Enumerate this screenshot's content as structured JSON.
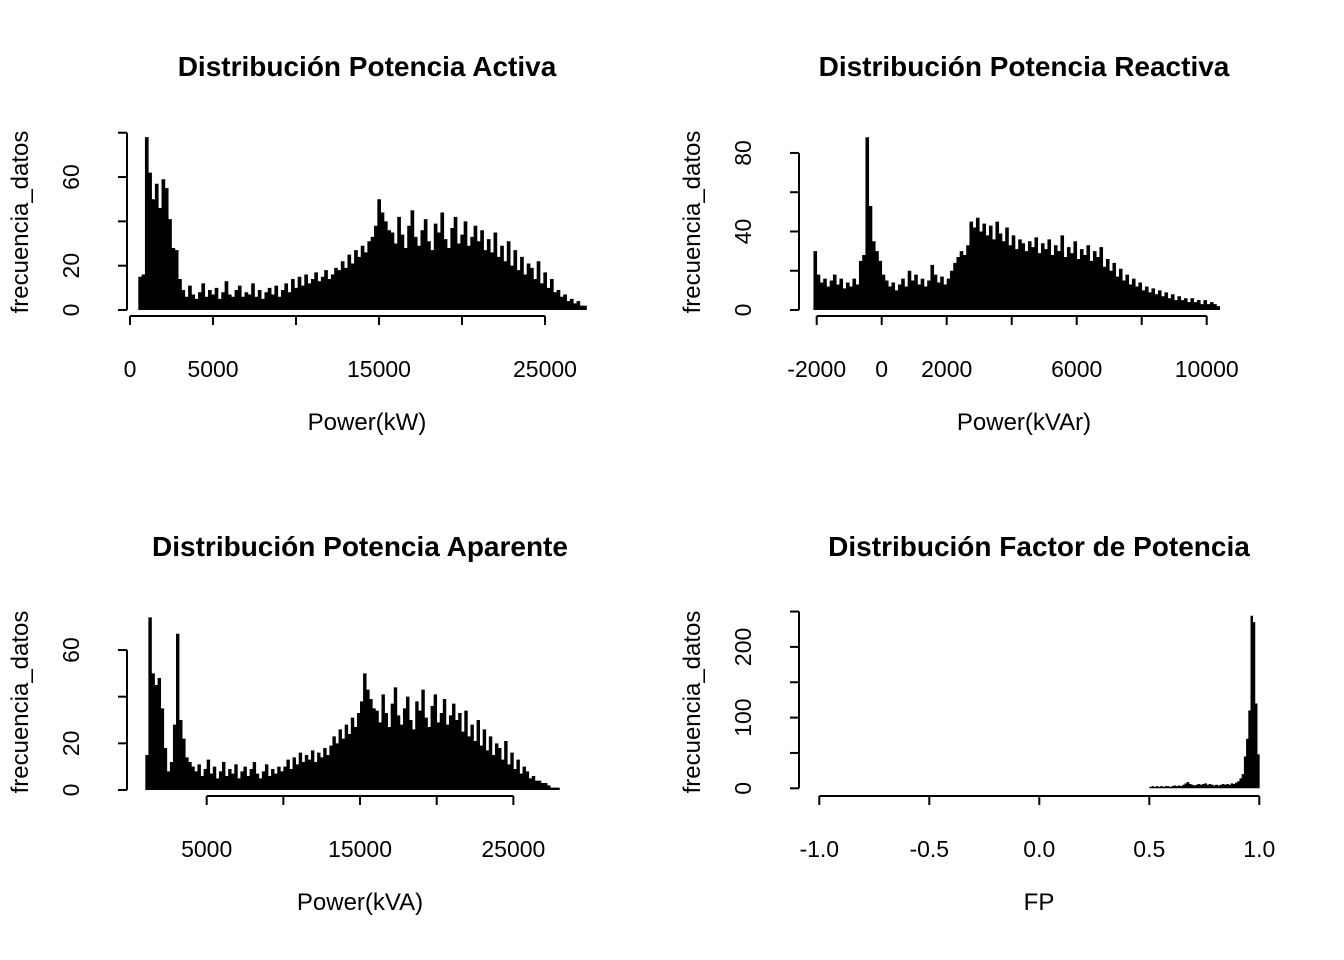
{
  "figure": {
    "background": "#ffffff",
    "grid": "2x2",
    "foreground": "#000000"
  },
  "chart_data": [
    {
      "type": "bar",
      "subtype": "histogram",
      "title": "Distribución Potencia Activa",
      "xlabel": "Power(kW)",
      "ylabel": "frecuencia_datos",
      "bar_color": "#000000",
      "x_start": 500,
      "bin_width": 200,
      "counts": [
        15,
        16,
        78,
        62,
        50,
        57,
        46,
        59,
        55,
        41,
        28,
        27,
        14,
        9,
        6,
        11,
        7,
        5,
        8,
        12,
        6,
        9,
        7,
        10,
        5,
        8,
        13,
        7,
        6,
        9,
        11,
        6,
        8,
        7,
        12,
        6,
        9,
        5,
        8,
        10,
        7,
        11,
        6,
        9,
        12,
        8,
        14,
        10,
        15,
        11,
        16,
        12,
        14,
        17,
        13,
        15,
        18,
        14,
        16,
        19,
        18,
        22,
        19,
        25,
        21,
        27,
        24,
        29,
        26,
        31,
        33,
        38,
        50,
        44,
        40,
        36,
        35,
        30,
        42,
        34,
        28,
        38,
        45,
        33,
        29,
        36,
        41,
        31,
        27,
        39,
        35,
        44,
        32,
        28,
        37,
        42,
        30,
        34,
        40,
        29,
        33,
        38,
        31,
        36,
        27,
        32,
        26,
        35,
        24,
        29,
        22,
        31,
        20,
        27,
        18,
        24,
        16,
        21,
        19,
        14,
        22,
        12,
        17,
        10,
        14,
        8,
        9,
        6,
        7,
        4,
        5,
        3,
        4,
        2,
        2
      ],
      "x_ticks": {
        "values": [
          0,
          5000,
          10000,
          15000,
          20000,
          25000
        ],
        "labels": [
          "0",
          "5000",
          null,
          "15000",
          null,
          "25000"
        ]
      },
      "y_ticks": {
        "values": [
          0,
          20,
          40,
          60,
          80
        ],
        "labels": [
          "0",
          "20",
          null,
          "60",
          null
        ]
      },
      "x_range": [
        0,
        25000
      ],
      "y_range": [
        0,
        80
      ]
    },
    {
      "type": "bar",
      "subtype": "histogram",
      "title": "Distribución Potencia Reactiva",
      "xlabel": "Power(kVAr)",
      "ylabel": "frecuencia_datos",
      "bar_color": "#000000",
      "x_start": -2100,
      "bin_width": 100,
      "counts": [
        30,
        18,
        14,
        16,
        12,
        15,
        18,
        13,
        16,
        11,
        14,
        12,
        16,
        13,
        25,
        28,
        88,
        53,
        35,
        30,
        25,
        18,
        15,
        12,
        14,
        10,
        13,
        16,
        12,
        20,
        15,
        18,
        13,
        16,
        12,
        15,
        23,
        18,
        14,
        17,
        13,
        16,
        20,
        24,
        27,
        30,
        28,
        33,
        45,
        42,
        47,
        40,
        44,
        38,
        43,
        36,
        45,
        39,
        35,
        42,
        33,
        38,
        31,
        36,
        34,
        30,
        35,
        32,
        37,
        29,
        34,
        31,
        36,
        28,
        33,
        30,
        38,
        27,
        32,
        29,
        35,
        26,
        31,
        28,
        33,
        25,
        30,
        27,
        32,
        22,
        26,
        20,
        24,
        17,
        21,
        15,
        18,
        13,
        16,
        12,
        14,
        10,
        12,
        9,
        11,
        8,
        10,
        7,
        9,
        6,
        8,
        5,
        7,
        5,
        6,
        4,
        6,
        4,
        5,
        3,
        5,
        3,
        4,
        3,
        2
      ],
      "x_ticks": {
        "values": [
          -2000,
          0,
          2000,
          4000,
          6000,
          8000,
          10000
        ],
        "labels": [
          "-2000",
          "0",
          "2000",
          null,
          "6000",
          null,
          "10000"
        ]
      },
      "y_ticks": {
        "values": [
          0,
          20,
          40,
          60,
          80
        ],
        "labels": [
          "0",
          null,
          "40",
          null,
          "80"
        ]
      },
      "x_range": [
        -2000,
        10000
      ],
      "y_range": [
        0,
        80
      ]
    },
    {
      "type": "bar",
      "subtype": "histogram",
      "title": "Distribución Potencia Aparente",
      "xlabel": "Power(kVA)",
      "ylabel": "frecuencia_datos",
      "bar_color": "#000000",
      "x_start": 1000,
      "bin_width": 200,
      "counts": [
        15,
        74,
        50,
        45,
        48,
        35,
        18,
        8,
        12,
        28,
        67,
        30,
        22,
        14,
        12,
        10,
        8,
        11,
        6,
        9,
        13,
        7,
        10,
        5,
        8,
        12,
        6,
        9,
        7,
        11,
        5,
        8,
        10,
        6,
        9,
        12,
        7,
        5,
        8,
        11,
        6,
        9,
        7,
        10,
        8,
        10,
        13,
        9,
        14,
        11,
        16,
        12,
        15,
        13,
        17,
        12,
        16,
        14,
        18,
        15,
        19,
        23,
        20,
        26,
        22,
        28,
        24,
        31,
        27,
        33,
        38,
        50,
        43,
        39,
        35,
        34,
        29,
        41,
        33,
        27,
        37,
        44,
        32,
        28,
        35,
        40,
        30,
        26,
        38,
        34,
        43,
        31,
        27,
        36,
        41,
        29,
        33,
        39,
        28,
        32,
        37,
        30,
        33,
        25,
        34,
        23,
        28,
        21,
        30,
        19,
        26,
        17,
        23,
        15,
        20,
        18,
        13,
        21,
        11,
        16,
        9,
        13,
        7,
        10,
        8,
        5,
        6,
        4,
        4,
        3,
        3,
        2,
        1,
        1,
        1
      ],
      "x_ticks": {
        "values": [
          5000,
          10000,
          15000,
          20000,
          25000
        ],
        "labels": [
          "5000",
          null,
          "15000",
          null,
          "25000"
        ]
      },
      "y_ticks": {
        "values": [
          0,
          20,
          40,
          60
        ],
        "labels": [
          "0",
          "20",
          null,
          "60"
        ]
      },
      "x_range": [
        5000,
        25000
      ],
      "y_range": [
        0,
        60
      ]
    },
    {
      "type": "bar",
      "subtype": "histogram",
      "title": "Distribución Factor de Potencia",
      "xlabel": "FP",
      "ylabel": "frecuencia_datos",
      "bar_color": "#000000",
      "x_start": 0.5,
      "bin_width": 0.01,
      "counts": [
        2,
        3,
        2,
        3,
        2,
        3,
        2,
        3,
        3,
        2,
        3,
        4,
        3,
        4,
        3,
        5,
        7,
        9,
        6,
        5,
        4,
        5,
        6,
        5,
        6,
        7,
        5,
        6,
        5,
        4,
        5,
        4,
        5,
        6,
        5,
        6,
        5,
        7,
        6,
        8,
        10,
        14,
        20,
        45,
        70,
        110,
        244,
        235,
        120,
        48
      ],
      "x_ticks": {
        "values": [
          -1,
          -0.5,
          0,
          0.5,
          1
        ],
        "labels": [
          "-1.0",
          "-0.5",
          "0.0",
          "0.5",
          "1.0"
        ]
      },
      "y_ticks": {
        "values": [
          0,
          50,
          100,
          150,
          200,
          250
        ],
        "labels": [
          "0",
          null,
          "100",
          null,
          "200",
          null
        ]
      },
      "x_range": [
        -1.0,
        1.0
      ],
      "y_range": [
        0,
        250
      ]
    }
  ]
}
